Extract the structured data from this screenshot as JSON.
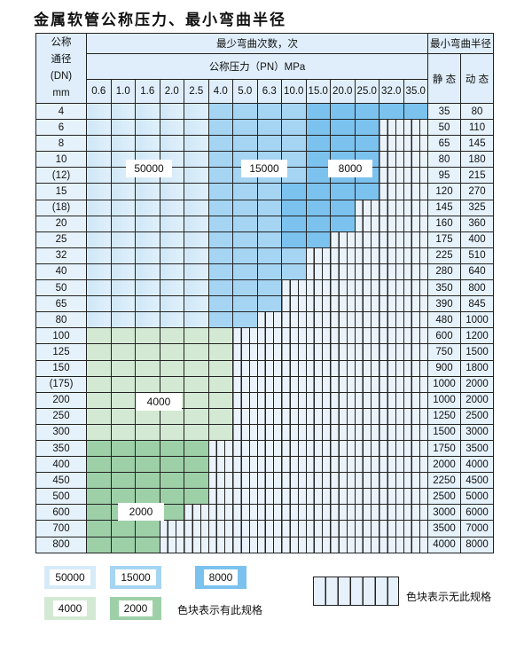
{
  "title": "金属软管公称压力、最小弯曲半径",
  "header": {
    "dn_label": [
      "公称",
      "通径",
      "(DN)",
      "mm"
    ],
    "cycles_label": "最少弯曲次数，次",
    "pressure_label": "公称压力（PN）MPa",
    "radius_label": "最小弯曲半径",
    "static_label": "静 态",
    "dynamic_label": "动 态",
    "pressures": [
      "0.6",
      "1.0",
      "1.6",
      "2.0",
      "2.5",
      "4.0",
      "5.0",
      "6.3",
      "10.0",
      "15.0",
      "20.0",
      "25.0",
      "32.0",
      "35.0"
    ]
  },
  "tier_colors": {
    "a": "#d6ebf8",
    "b": "#a6d5f3",
    "c": "#7cc2ee",
    "d": "#d3e9d3",
    "e": "#9ed0a8"
  },
  "tier_values": {
    "a": "50000",
    "b": "15000",
    "c": "8000",
    "d": "4000",
    "e": "2000"
  },
  "rows": [
    {
      "dn": "4",
      "tiers": "aaaaabbbbccccc",
      "static": "35",
      "dynamic": "80"
    },
    {
      "dn": "6",
      "tiers": "aaaaabbbbccc--",
      "static": "50",
      "dynamic": "110"
    },
    {
      "dn": "8",
      "tiers": "aaaaabbbbccc--",
      "static": "65",
      "dynamic": "145"
    },
    {
      "dn": "10",
      "tiers": "aaaaabbbbccc--",
      "static": "80",
      "dynamic": "180"
    },
    {
      "dn": "(12)",
      "tiers": "aaaaabbbbccc--",
      "static": "95",
      "dynamic": "215"
    },
    {
      "dn": "15",
      "tiers": "aaaaabbbcccc--",
      "static": "120",
      "dynamic": "270"
    },
    {
      "dn": "(18)",
      "tiers": "aaaaabbbccc---",
      "static": "145",
      "dynamic": "325"
    },
    {
      "dn": "20",
      "tiers": "aaaaabbbccc---",
      "static": "160",
      "dynamic": "360"
    },
    {
      "dn": "25",
      "tiers": "aaaaabbbcc----",
      "static": "175",
      "dynamic": "400"
    },
    {
      "dn": "32",
      "tiers": "aaaaabbbb-----",
      "static": "225",
      "dynamic": "510"
    },
    {
      "dn": "40",
      "tiers": "aaaaabbbb-----",
      "static": "280",
      "dynamic": "640"
    },
    {
      "dn": "50",
      "tiers": "aaaaabbb------",
      "static": "350",
      "dynamic": "800"
    },
    {
      "dn": "65",
      "tiers": "aaaaabbb------",
      "static": "390",
      "dynamic": "845"
    },
    {
      "dn": "80",
      "tiers": "aaaaabb-------",
      "static": "480",
      "dynamic": "1000"
    },
    {
      "dn": "100",
      "tiers": "dddddd--------",
      "static": "600",
      "dynamic": "1200"
    },
    {
      "dn": "125",
      "tiers": "dddddd--------",
      "static": "750",
      "dynamic": "1500"
    },
    {
      "dn": "150",
      "tiers": "dddddd--------",
      "static": "900",
      "dynamic": "1800"
    },
    {
      "dn": "(175)",
      "tiers": "dddddd--------",
      "static": "1000",
      "dynamic": "2000"
    },
    {
      "dn": "200",
      "tiers": "dddddd--------",
      "static": "1000",
      "dynamic": "2000"
    },
    {
      "dn": "250",
      "tiers": "dddddd--------",
      "static": "1250",
      "dynamic": "2500"
    },
    {
      "dn": "300",
      "tiers": "dddddd--------",
      "static": "1500",
      "dynamic": "3000"
    },
    {
      "dn": "350",
      "tiers": "eeeee---------",
      "static": "1750",
      "dynamic": "3500"
    },
    {
      "dn": "400",
      "tiers": "eeeee---------",
      "static": "2000",
      "dynamic": "4000"
    },
    {
      "dn": "450",
      "tiers": "eeeee---------",
      "static": "2250",
      "dynamic": "4500"
    },
    {
      "dn": "500",
      "tiers": "eeeee---------",
      "static": "2500",
      "dynamic": "5000"
    },
    {
      "dn": "600",
      "tiers": "eeee----------",
      "static": "3000",
      "dynamic": "6000"
    },
    {
      "dn": "700",
      "tiers": "eee-----------",
      "static": "3500",
      "dynamic": "7000"
    },
    {
      "dn": "800",
      "tiers": "eee-----------",
      "static": "4000",
      "dynamic": "8000"
    }
  ],
  "region_labels": [
    "50000",
    "15000",
    "8000",
    "4000",
    "2000"
  ],
  "legend": {
    "items": [
      "50000",
      "15000",
      "8000",
      "4000",
      "2000"
    ],
    "available_text": "色块表示有此规格",
    "unavailable_text": "色块表示无此规格"
  }
}
